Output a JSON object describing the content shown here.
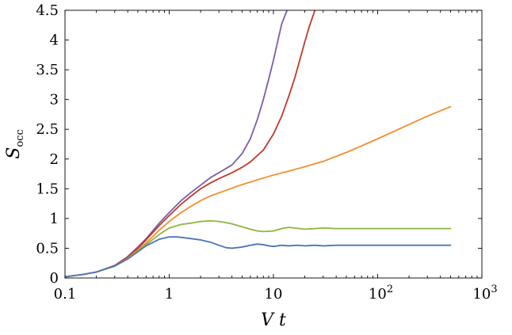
{
  "chart_data": {
    "type": "line",
    "xlabel": "V t",
    "ylabel": "S",
    "ylabel_subscript": "occ",
    "xscale": "log",
    "xlim": [
      0.1,
      1000
    ],
    "ylim": [
      0,
      4.5
    ],
    "grid": false,
    "x_ticks": [
      0.1,
      1,
      10,
      100,
      1000
    ],
    "x_tick_labels": [
      "0.1",
      "1",
      "10",
      "10^2",
      "10^3"
    ],
    "y_ticks": [
      0,
      0.5,
      1,
      1.5,
      2,
      2.5,
      3,
      3.5,
      4,
      4.5
    ],
    "y_tick_labels": [
      "0",
      "0.5",
      "1",
      "1.5",
      "2",
      "2.5",
      "3",
      "3.5",
      "4",
      "4.5"
    ],
    "series": [
      {
        "color": "#7b5ea7",
        "x": [
          0.1,
          0.15,
          0.2,
          0.3,
          0.4,
          0.5,
          0.6,
          0.8,
          1.0,
          1.3,
          1.6,
          2.0,
          2.5,
          3.0,
          3.5,
          4.0,
          5.0,
          6.0,
          7.0,
          8.0,
          9.0,
          10.0,
          11.0,
          12.0,
          13.5
        ],
        "y": [
          0.02,
          0.06,
          0.1,
          0.21,
          0.36,
          0.52,
          0.66,
          0.92,
          1.1,
          1.3,
          1.43,
          1.56,
          1.69,
          1.77,
          1.84,
          1.9,
          2.09,
          2.34,
          2.66,
          3.0,
          3.34,
          3.66,
          3.98,
          4.27,
          4.5
        ]
      },
      {
        "color": "#c0392b",
        "x": [
          0.1,
          0.15,
          0.2,
          0.3,
          0.4,
          0.5,
          0.6,
          0.8,
          1.0,
          1.3,
          1.6,
          2.0,
          2.5,
          3.0,
          4.0,
          5.0,
          6.0,
          8.0,
          10.0,
          12.0,
          14.0,
          16.0,
          18.0,
          20.0,
          22.0,
          25.0
        ],
        "y": [
          0.02,
          0.06,
          0.1,
          0.21,
          0.35,
          0.5,
          0.64,
          0.88,
          1.05,
          1.24,
          1.37,
          1.5,
          1.6,
          1.67,
          1.77,
          1.86,
          1.95,
          2.15,
          2.42,
          2.72,
          3.05,
          3.36,
          3.68,
          3.97,
          4.22,
          4.5
        ]
      },
      {
        "color": "#f28e2b",
        "x": [
          0.1,
          0.15,
          0.2,
          0.3,
          0.4,
          0.5,
          0.6,
          0.8,
          1.0,
          1.3,
          1.6,
          2.0,
          2.5,
          3.0,
          4.0,
          5.0,
          7.0,
          10.0,
          15.0,
          20.0,
          30.0,
          50.0,
          70.0,
          100.0,
          150.0,
          200.0,
          300.0,
          500.0
        ],
        "y": [
          0.02,
          0.06,
          0.1,
          0.2,
          0.33,
          0.47,
          0.59,
          0.8,
          0.95,
          1.1,
          1.2,
          1.3,
          1.38,
          1.43,
          1.51,
          1.57,
          1.65,
          1.73,
          1.81,
          1.87,
          1.96,
          2.11,
          2.22,
          2.34,
          2.48,
          2.58,
          2.72,
          2.88
        ]
      },
      {
        "color": "#8cb63c",
        "x": [
          0.1,
          0.15,
          0.2,
          0.3,
          0.4,
          0.5,
          0.6,
          0.8,
          1.0,
          1.3,
          1.6,
          2.0,
          2.5,
          3.0,
          3.5,
          4.0,
          5.0,
          6.0,
          7.0,
          8.0,
          10.0,
          12.0,
          14.0,
          16.0,
          20.0,
          25.0,
          30.0,
          40.0,
          60.0,
          100.0,
          200.0,
          500.0
        ],
        "y": [
          0.02,
          0.06,
          0.1,
          0.2,
          0.32,
          0.45,
          0.56,
          0.73,
          0.84,
          0.9,
          0.92,
          0.95,
          0.96,
          0.95,
          0.93,
          0.91,
          0.86,
          0.82,
          0.79,
          0.78,
          0.79,
          0.83,
          0.85,
          0.84,
          0.82,
          0.83,
          0.84,
          0.83,
          0.83,
          0.83,
          0.83,
          0.83
        ]
      },
      {
        "color": "#4a76b8",
        "x": [
          0.1,
          0.15,
          0.2,
          0.3,
          0.4,
          0.5,
          0.6,
          0.8,
          1.0,
          1.2,
          1.5,
          2.0,
          2.5,
          3.0,
          3.5,
          4.0,
          5.0,
          6.0,
          7.0,
          8.0,
          9.0,
          10.0,
          12.0,
          14.0,
          17.0,
          20.0,
          25.0,
          30.0,
          40.0,
          60.0,
          100.0,
          200.0,
          500.0
        ],
        "y": [
          0.02,
          0.06,
          0.1,
          0.2,
          0.32,
          0.44,
          0.54,
          0.65,
          0.69,
          0.69,
          0.67,
          0.64,
          0.6,
          0.55,
          0.51,
          0.5,
          0.52,
          0.55,
          0.57,
          0.56,
          0.54,
          0.53,
          0.55,
          0.54,
          0.55,
          0.54,
          0.55,
          0.54,
          0.55,
          0.55,
          0.55,
          0.55,
          0.55
        ]
      }
    ]
  }
}
